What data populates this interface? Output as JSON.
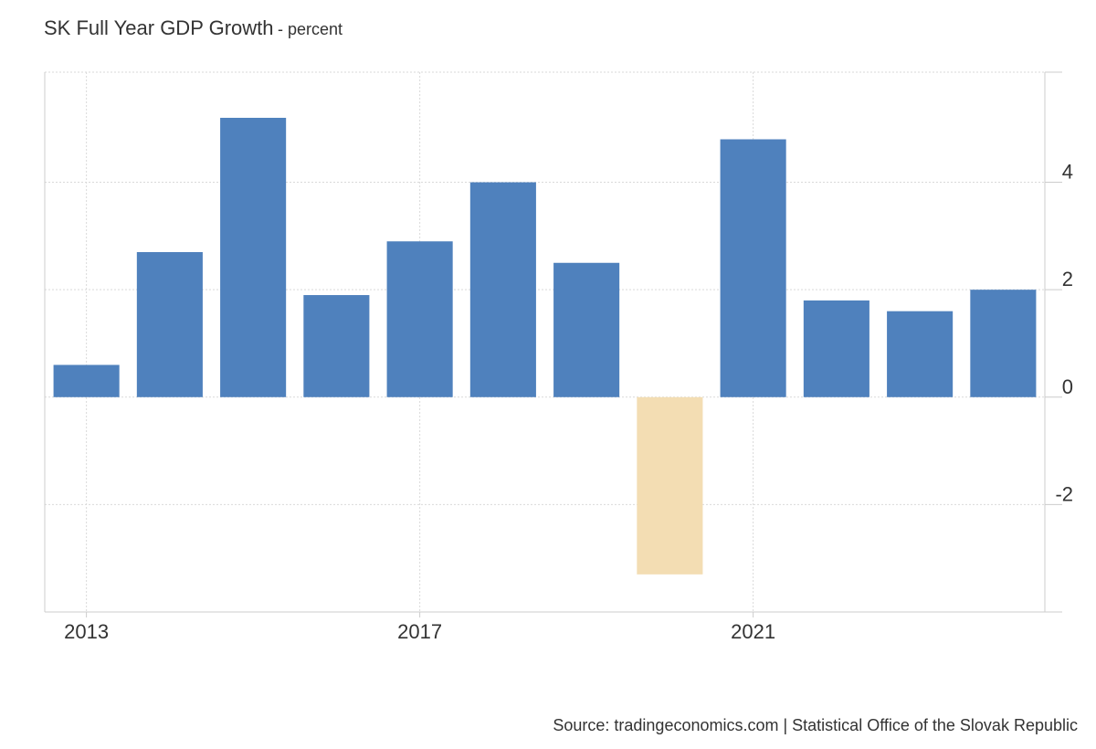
{
  "header": {
    "title": "SK Full Year GDP Growth",
    "subtitle": "- percent"
  },
  "footer": {
    "source": "Source: tradingeconomics.com | Statistical Office of the Slovak Republic"
  },
  "chart_data": {
    "type": "bar",
    "title": "SK Full Year GDP Growth",
    "subtitle": "percent",
    "categories": [
      "2013",
      "2014",
      "2015",
      "2016",
      "2017",
      "2018",
      "2019",
      "2020",
      "2021",
      "2022",
      "2023",
      "2024"
    ],
    "values": [
      0.6,
      2.7,
      5.2,
      1.9,
      2.9,
      4.0,
      2.5,
      -3.3,
      4.8,
      1.8,
      1.6,
      2.0
    ],
    "x_tick_labels": [
      "2013",
      "2017",
      "2021"
    ],
    "y_ticks": [
      -2,
      0,
      2,
      4
    ],
    "ylim": [
      -4,
      6.05
    ],
    "y_axis_position": "right",
    "grid": true,
    "colors": {
      "positive": "#4f81bd",
      "negative": "#f3ddb3",
      "grid": "#d9d9d9",
      "axis": "#cccccc",
      "text": "#333333"
    }
  }
}
